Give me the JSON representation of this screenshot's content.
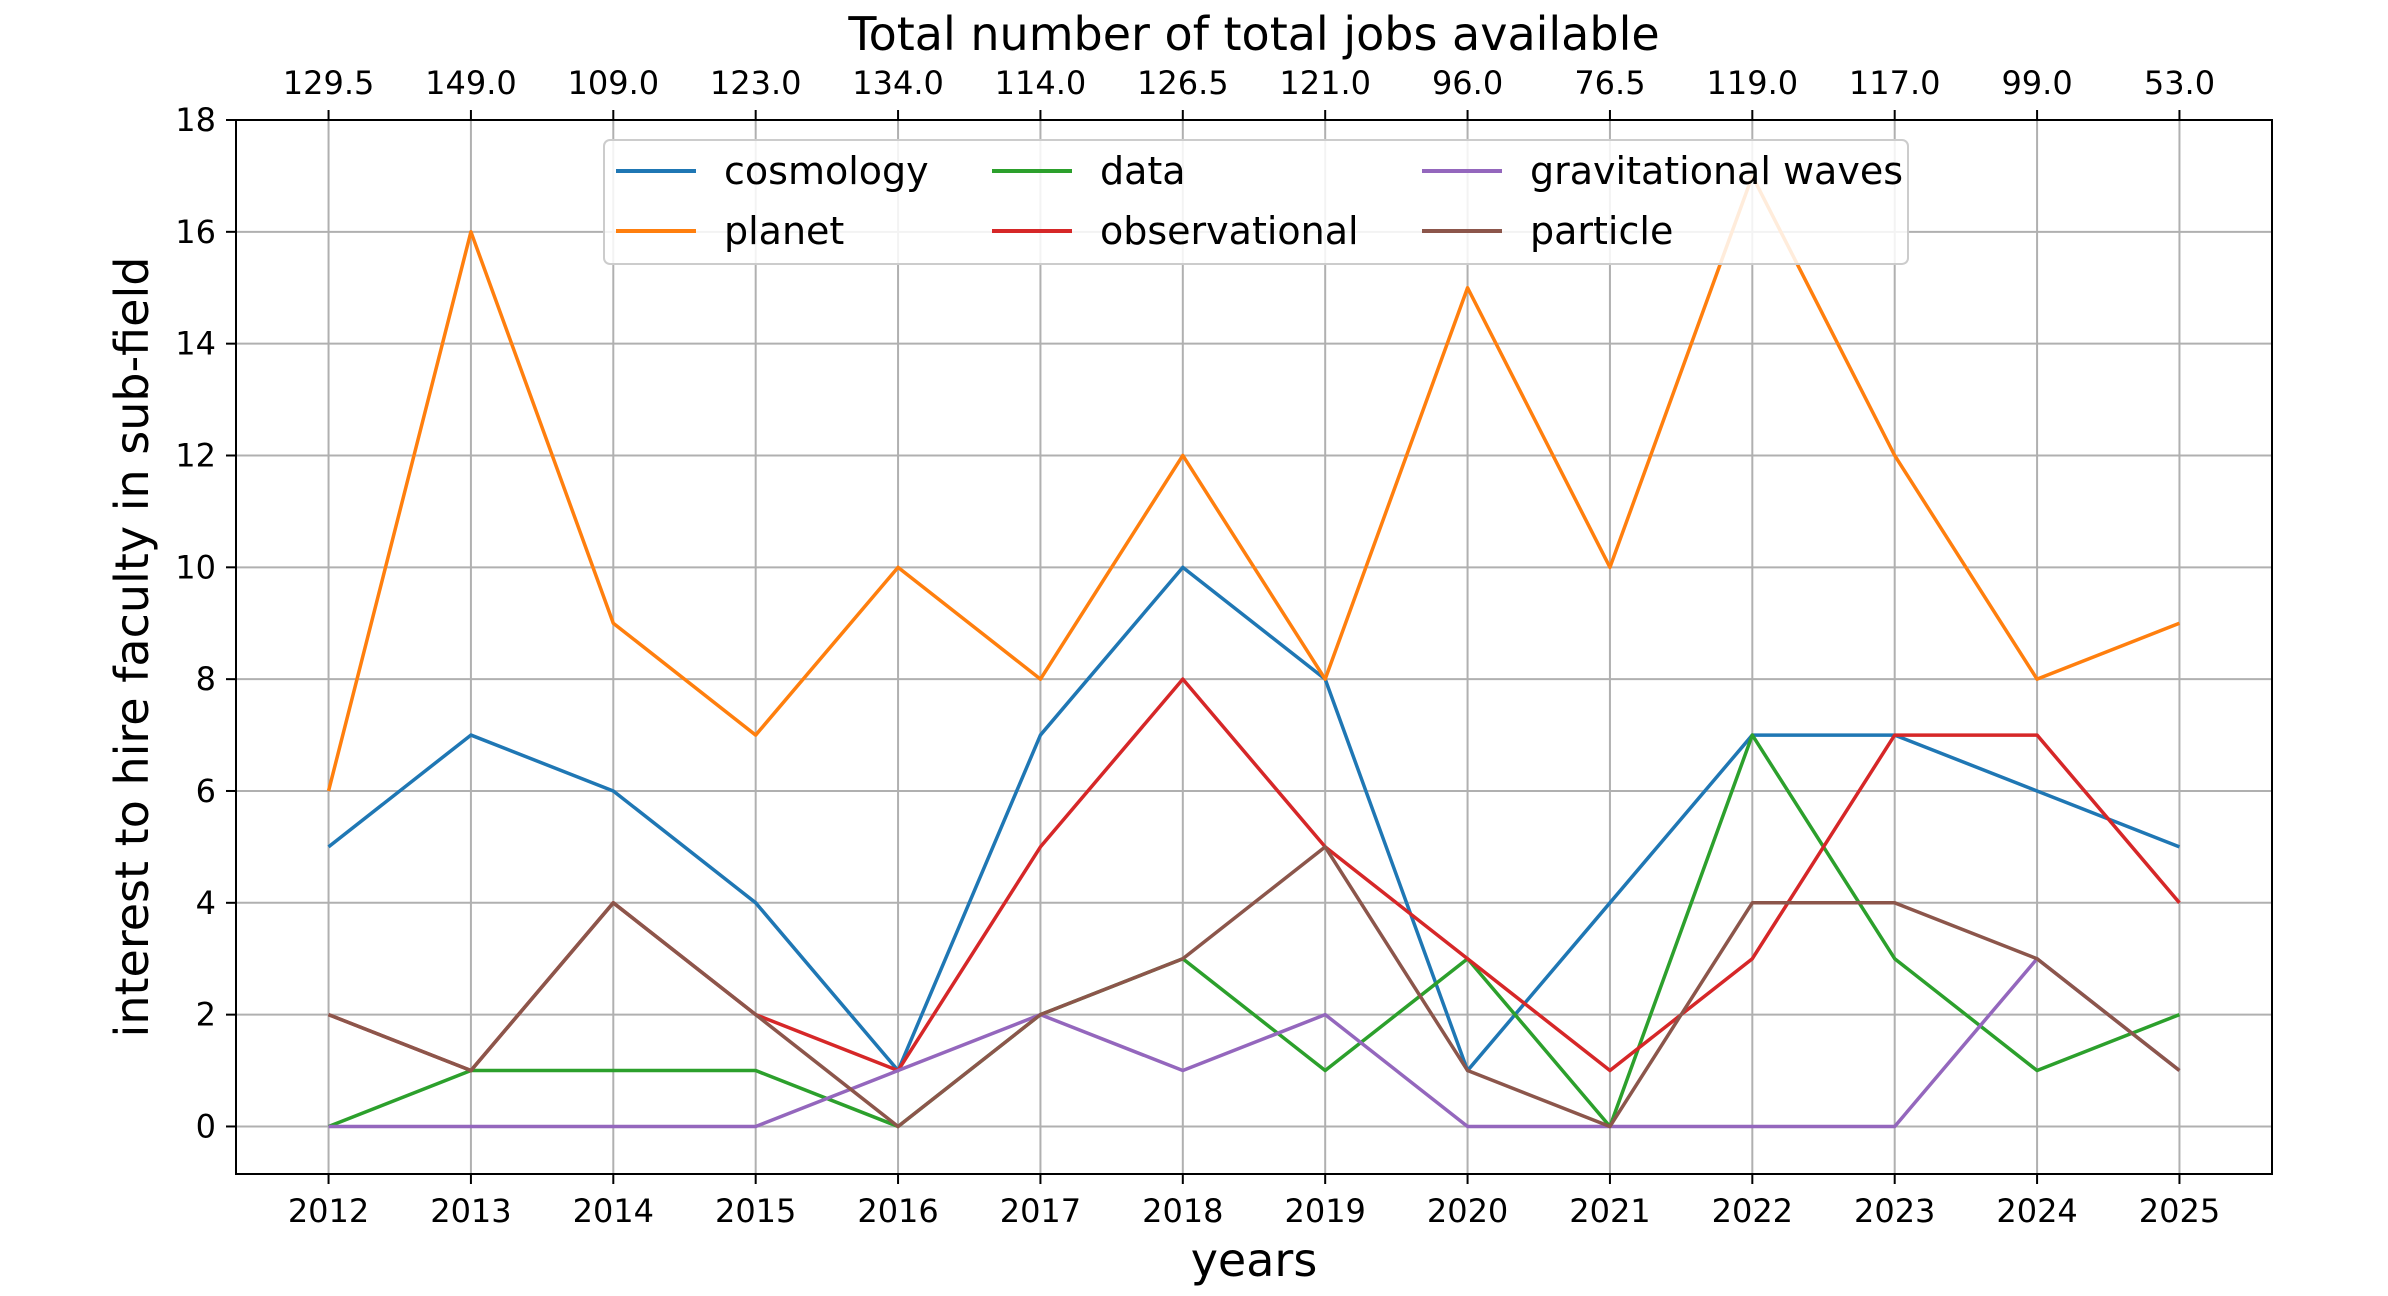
{
  "chart_data": {
    "type": "line",
    "title": "",
    "top_axis_label": "Total number of total jobs available",
    "top_tick_labels": [
      "129.5",
      "149.0",
      "109.0",
      "123.0",
      "134.0",
      "114.0",
      "126.5",
      "121.0",
      "96.0",
      "76.5",
      "119.0",
      "117.0",
      "99.0",
      "53.0"
    ],
    "xlabel": "years",
    "ylabel": "interest to hire faculty in sub-field",
    "x": [
      2012,
      2013,
      2014,
      2015,
      2016,
      2017,
      2018,
      2019,
      2020,
      2021,
      2022,
      2023,
      2024,
      2025
    ],
    "x_tick_labels": [
      "2012",
      "2013",
      "2014",
      "2015",
      "2016",
      "2017",
      "2018",
      "2019",
      "2020",
      "2021",
      "2022",
      "2023",
      "2024",
      "2025"
    ],
    "xlim": [
      2011.35,
      2025.65
    ],
    "ylim": [
      -0.85,
      18
    ],
    "y_ticks": [
      0,
      2,
      4,
      6,
      8,
      10,
      12,
      14,
      16,
      18
    ],
    "grid": true,
    "legend_position": "top-center",
    "legend_columns": 3,
    "series": [
      {
        "name": "cosmology",
        "color": "#1f77b4",
        "values": [
          5,
          7,
          6,
          4,
          1,
          7,
          10,
          8,
          1,
          4,
          7,
          7,
          6,
          5
        ]
      },
      {
        "name": "planet",
        "color": "#ff7f0e",
        "values": [
          6,
          16,
          9,
          7,
          10,
          8,
          12,
          8,
          15,
          10,
          17,
          12,
          8,
          9
        ]
      },
      {
        "name": "data",
        "color": "#2ca02c",
        "values": [
          0,
          1,
          1,
          1,
          0,
          2,
          3,
          1,
          3,
          0,
          7,
          3,
          1,
          2
        ]
      },
      {
        "name": "observational",
        "color": "#d62728",
        "values": [
          2,
          1,
          4,
          2,
          1,
          5,
          8,
          5,
          3,
          1,
          3,
          7,
          7,
          4
        ]
      },
      {
        "name": "gravitational waves",
        "color": "#9467bd",
        "values": [
          0,
          0,
          0,
          0,
          1,
          2,
          1,
          2,
          0,
          0,
          0,
          0,
          3,
          1
        ]
      },
      {
        "name": "particle",
        "color": "#8c564b",
        "values": [
          2,
          1,
          4,
          2,
          0,
          2,
          3,
          5,
          1,
          0,
          4,
          4,
          3,
          1
        ]
      }
    ]
  }
}
